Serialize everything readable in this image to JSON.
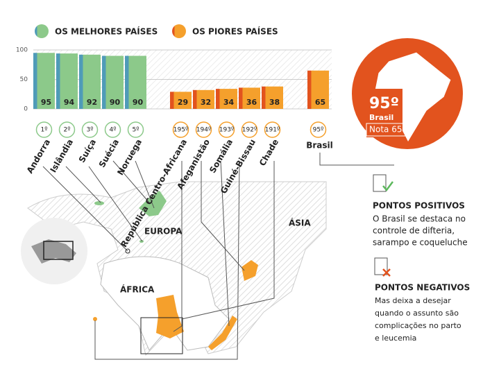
{
  "chart_data": {
    "type": "bar",
    "categories": [
      "Andorra",
      "Islândia",
      "Suíça",
      "Suécia",
      "Noruega",
      "República Centro-Africana",
      "Afeganistão",
      "Somália",
      "Guiné-Bissau",
      "Chade",
      "Brasil"
    ],
    "ranks": [
      "1º",
      "2º",
      "3º",
      "4º",
      "5º",
      "195º",
      "194º",
      "193º",
      "192º",
      "191º",
      "95º"
    ],
    "series": [
      {
        "name": "OS MELHORES PAÍSES",
        "color": "#8cc98a",
        "edge_color": "#4f9bb8",
        "values": [
          95,
          94,
          92,
          90,
          90,
          null,
          null,
          null,
          null,
          null,
          null
        ]
      },
      {
        "name": "OS PIORES PAÍSES",
        "color": "#f5a02c",
        "edge_color": "#e2531e",
        "values": [
          null,
          null,
          null,
          null,
          null,
          29,
          32,
          34,
          36,
          38,
          65
        ]
      }
    ],
    "ylim": [
      0,
      100
    ],
    "yticks": [
      0,
      50,
      100
    ],
    "grid": true
  },
  "map_labels": [
    "EUROPA",
    "ÁSIA",
    "ÁFRICA"
  ],
  "brazil": {
    "rank": "95º",
    "name": "Brasil",
    "score": "Nota 65"
  },
  "positives": {
    "title": "PONTOS POSITIVOS",
    "lines": [
      "O Brasil se destaca no",
      "controle de difteria,",
      "sarampo e coqueluche"
    ]
  },
  "negatives": {
    "title": "PONTOS NEGATIVOS",
    "lines": [
      "Mas deixa a desejar",
      "quando o assunto são",
      "complicações no parto",
      "e leucemia"
    ]
  }
}
